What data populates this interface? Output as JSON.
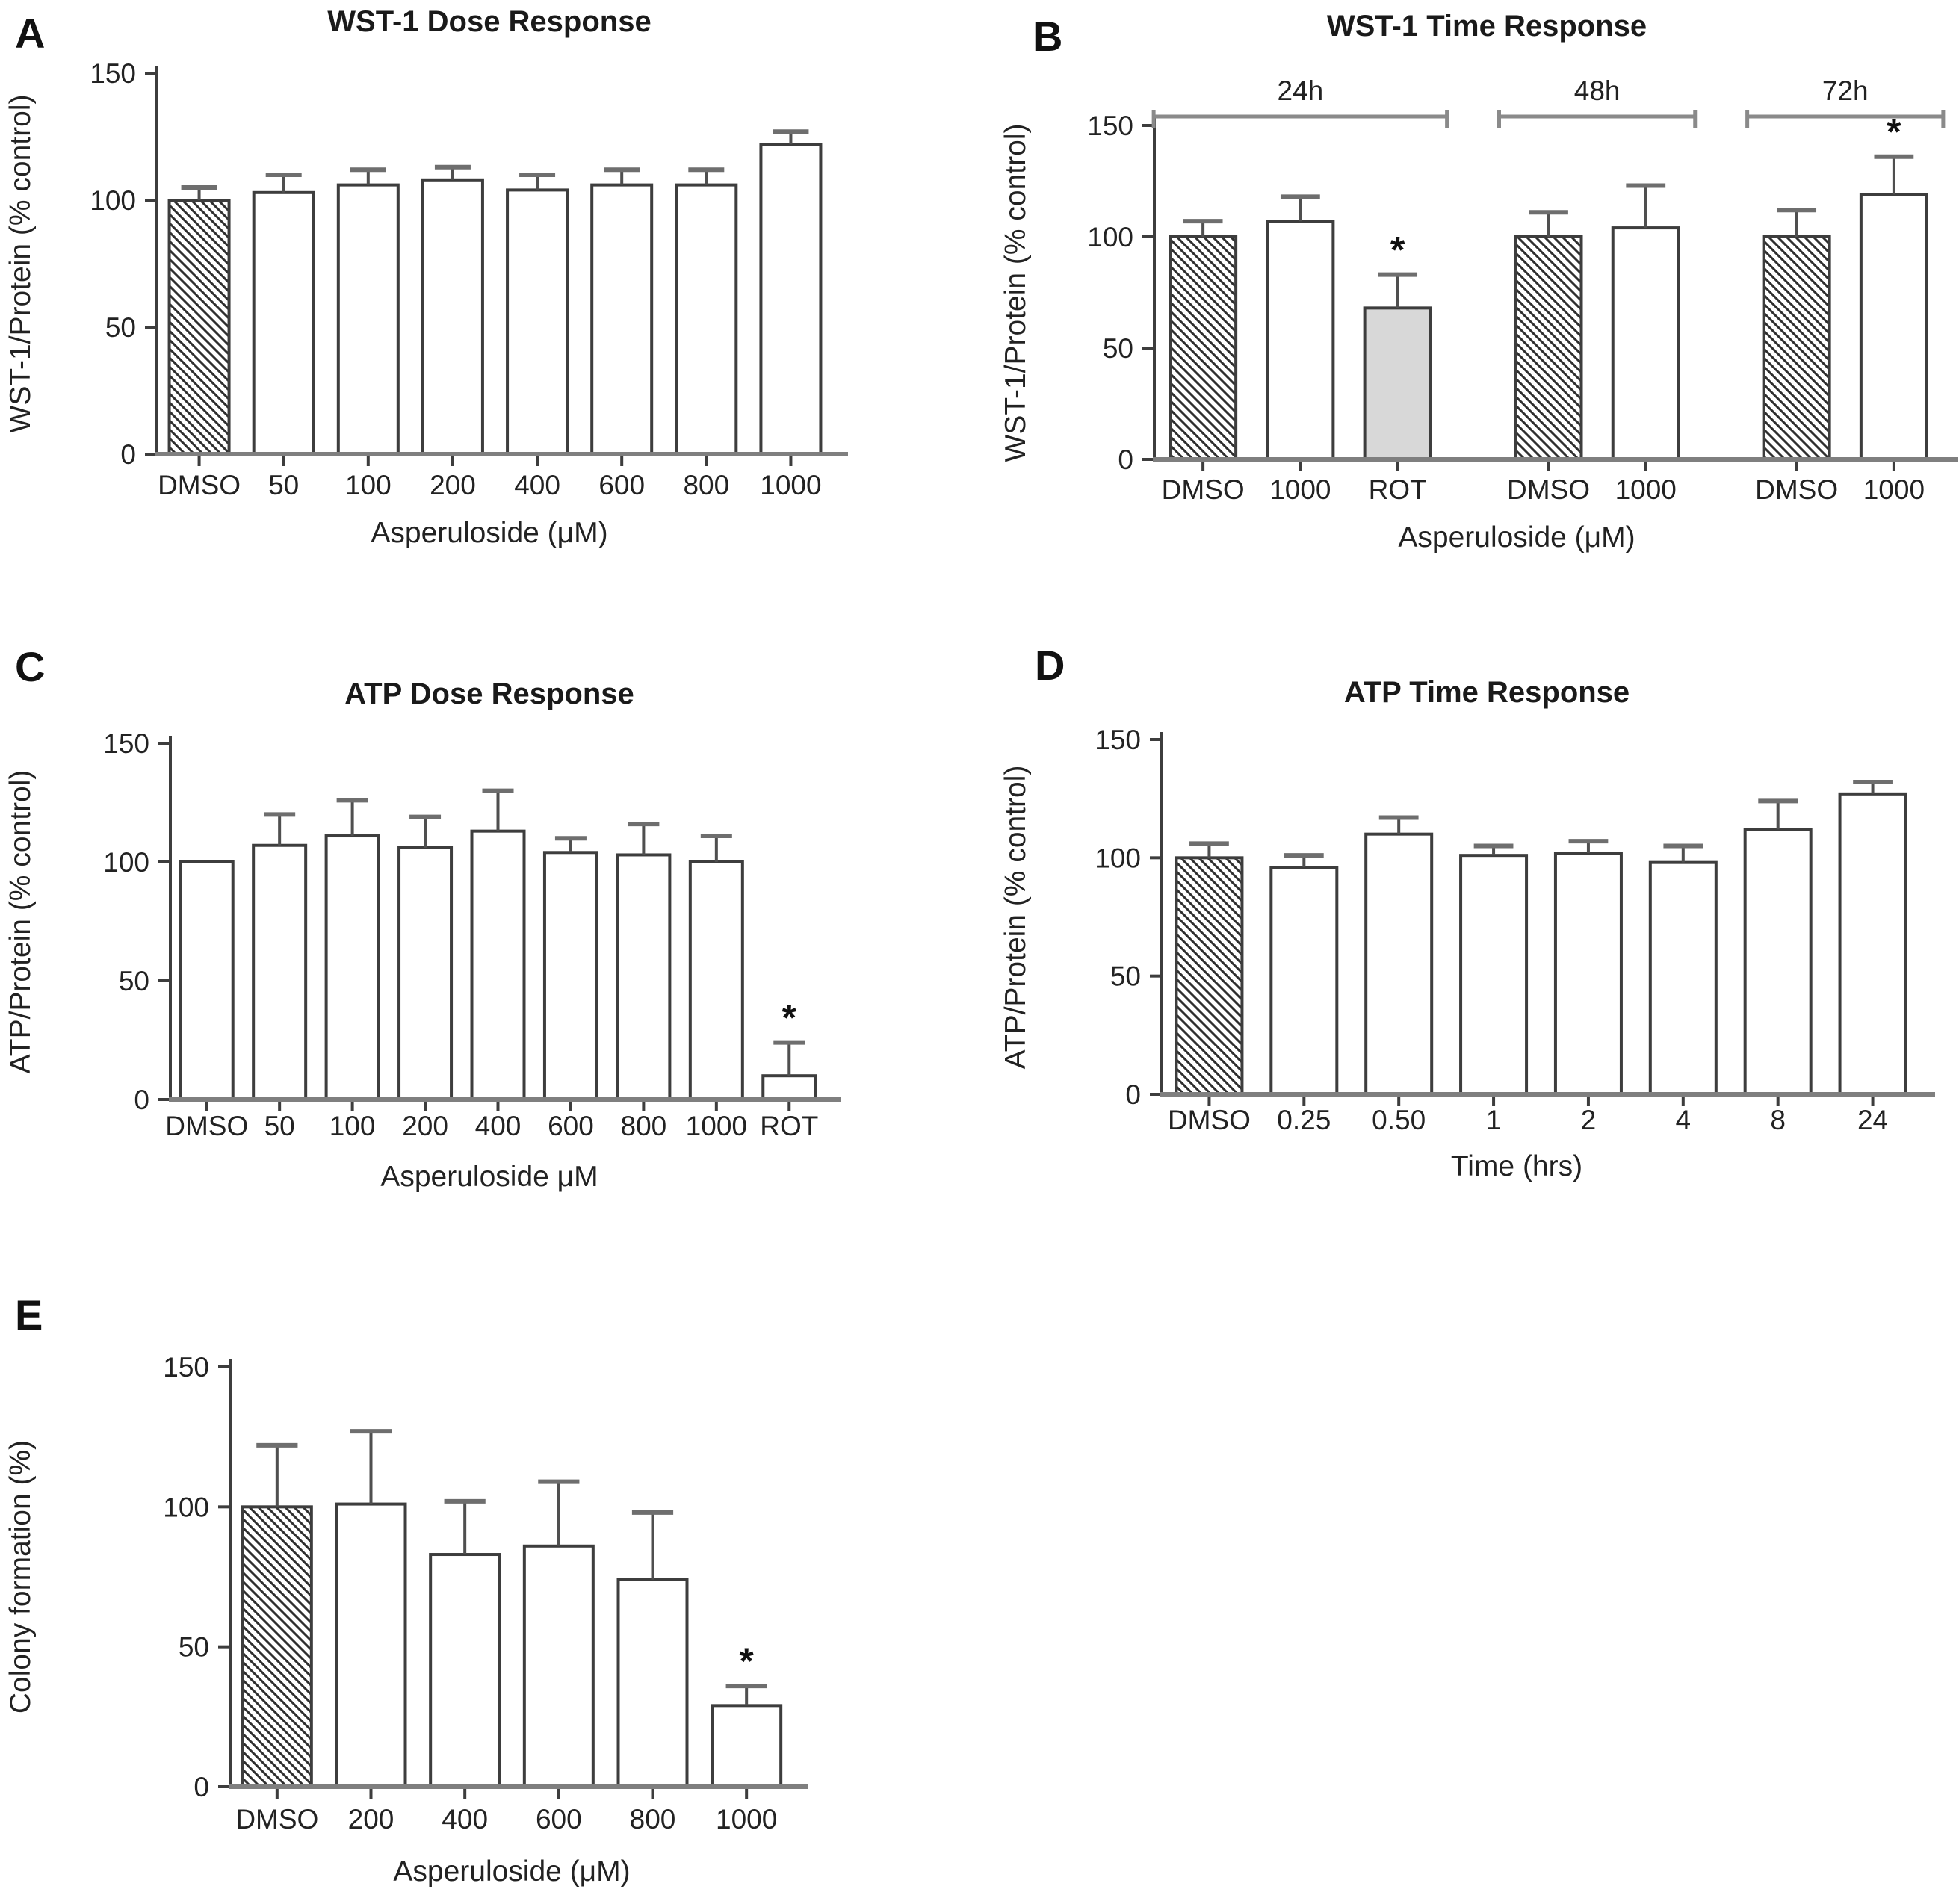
{
  "styles": {
    "bar_fill_white": "#ffffff",
    "bar_fill_gray": "#d8d8d8",
    "bar_stroke": "#3d3d3d",
    "axis_color": "#3d3d3d",
    "baseline_color": "#7f7f7f",
    "error_color": "#4f4f4f",
    "error_cap_color": "#6e6e6e",
    "bracket_color": "#8a8a8a",
    "text_color": "#222222",
    "significance_marker": "*"
  },
  "chart_data": [
    {
      "id": "A",
      "letter": "A",
      "type": "bar",
      "title": "WST-1 Dose Response",
      "ylabel": "WST-1/Protein (% control)",
      "xlabel": "Asperuloside (μM)",
      "ylim": [
        0,
        150
      ],
      "yticks": [
        0,
        50,
        100,
        150
      ],
      "grid": false,
      "legend": "none",
      "categories": [
        "DMSO",
        "50",
        "100",
        "200",
        "400",
        "600",
        "800",
        "1000"
      ],
      "values": [
        100,
        103,
        106,
        108,
        104,
        106,
        106,
        122
      ],
      "errors": [
        5,
        7,
        6,
        5,
        6,
        6,
        6,
        5
      ],
      "bar_styles": [
        "hatched",
        "white",
        "white",
        "white",
        "white",
        "white",
        "white",
        "white"
      ],
      "significant": [
        false,
        false,
        false,
        false,
        false,
        false,
        false,
        false
      ]
    },
    {
      "id": "B",
      "letter": "B",
      "type": "bar",
      "title": "WST-1 Time Response",
      "ylabel": "WST-1/Protein (% control)",
      "xlabel": "Asperuloside (μM)",
      "ylim": [
        0,
        150
      ],
      "yticks": [
        0,
        50,
        100,
        150
      ],
      "grid": false,
      "legend": "none",
      "groups": [
        {
          "label": "24h",
          "categories": [
            "DMSO",
            "1000",
            "ROT"
          ],
          "values": [
            100,
            107,
            68
          ],
          "errors": [
            7,
            11,
            15
          ],
          "bar_styles": [
            "hatched",
            "white",
            "gray"
          ],
          "significant": [
            false,
            false,
            true
          ]
        },
        {
          "label": "48h",
          "categories": [
            "DMSO",
            "1000"
          ],
          "values": [
            100,
            104
          ],
          "errors": [
            11,
            19
          ],
          "bar_styles": [
            "hatched",
            "white"
          ],
          "significant": [
            false,
            false
          ]
        },
        {
          "label": "72h",
          "categories": [
            "DMSO",
            "1000"
          ],
          "values": [
            100,
            119
          ],
          "errors": [
            12,
            17
          ],
          "bar_styles": [
            "hatched",
            "white"
          ],
          "significant": [
            false,
            true
          ]
        }
      ]
    },
    {
      "id": "C",
      "letter": "C",
      "type": "bar",
      "title": "ATP Dose Response",
      "ylabel": "ATP/Protein (% control)",
      "xlabel": "Asperuloside μM",
      "ylim": [
        0,
        150
      ],
      "yticks": [
        0,
        50,
        100,
        150
      ],
      "grid": false,
      "legend": "none",
      "categories": [
        "DMSO",
        "50",
        "100",
        "200",
        "400",
        "600",
        "800",
        "1000",
        "ROT"
      ],
      "values": [
        100,
        107,
        111,
        106,
        113,
        104,
        103,
        100,
        10
      ],
      "errors": [
        0,
        13,
        15,
        13,
        17,
        6,
        13,
        11,
        14
      ],
      "bar_styles": [
        "white",
        "white",
        "white",
        "white",
        "white",
        "white",
        "white",
        "white",
        "white"
      ],
      "significant": [
        false,
        false,
        false,
        false,
        false,
        false,
        false,
        false,
        true
      ]
    },
    {
      "id": "D",
      "letter": "D",
      "type": "bar",
      "title": "ATP Time Response",
      "ylabel": "ATP/Protein (% control)",
      "xlabel": "Time (hrs)",
      "ylim": [
        0,
        150
      ],
      "yticks": [
        0,
        50,
        100,
        150
      ],
      "grid": false,
      "legend": "none",
      "categories": [
        "DMSO",
        "0.25",
        "0.50",
        "1",
        "2",
        "4",
        "8",
        "24"
      ],
      "values": [
        100,
        96,
        110,
        101,
        102,
        98,
        112,
        127
      ],
      "errors": [
        6,
        5,
        7,
        4,
        5,
        7,
        12,
        5
      ],
      "bar_styles": [
        "hatched",
        "white",
        "white",
        "white",
        "white",
        "white",
        "white",
        "white"
      ],
      "significant": [
        false,
        false,
        false,
        false,
        false,
        false,
        false,
        false
      ]
    },
    {
      "id": "E",
      "letter": "E",
      "type": "bar",
      "title": "",
      "ylabel": "Colony formation (%)",
      "xlabel": "Asperuloside (μM)",
      "ylim": [
        0,
        150
      ],
      "yticks": [
        0,
        50,
        100,
        150
      ],
      "grid": false,
      "legend": "none",
      "categories": [
        "DMSO",
        "200",
        "400",
        "600",
        "800",
        "1000"
      ],
      "values": [
        100,
        101,
        83,
        86,
        74,
        29
      ],
      "errors": [
        22,
        26,
        19,
        23,
        24,
        7
      ],
      "bar_styles": [
        "hatched",
        "white",
        "white",
        "white",
        "white",
        "white"
      ],
      "significant": [
        false,
        false,
        false,
        false,
        false,
        true
      ]
    }
  ]
}
